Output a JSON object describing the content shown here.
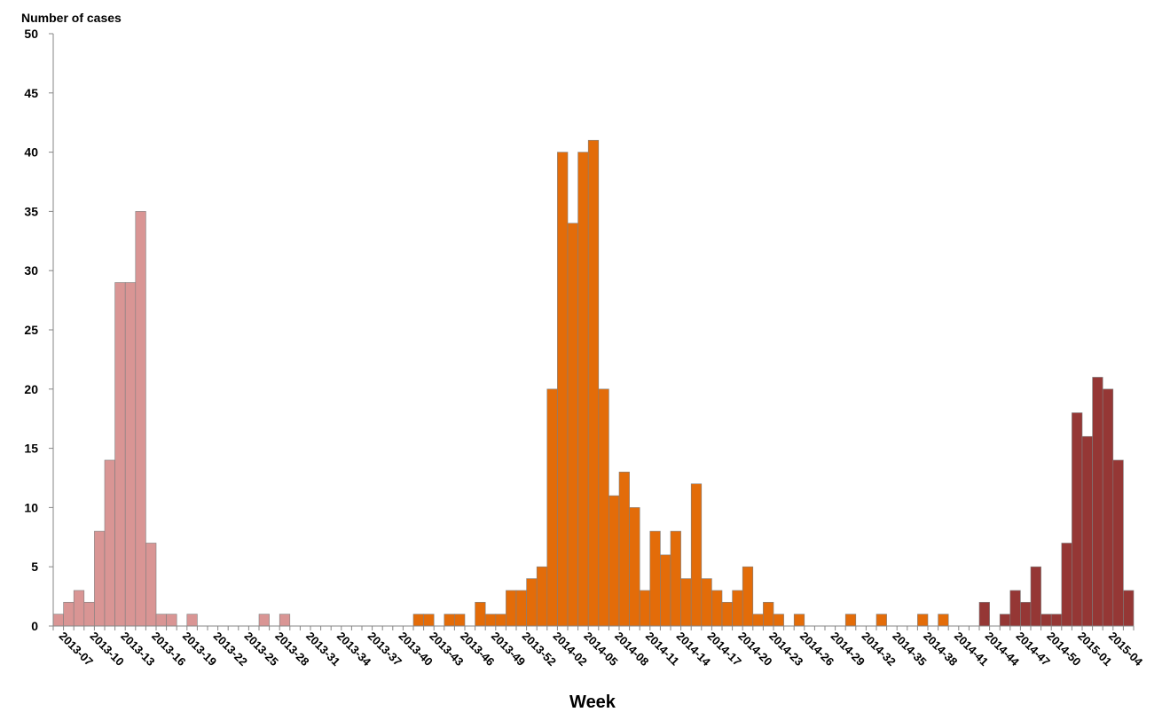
{
  "chart_data": {
    "type": "bar",
    "title": "",
    "ylabel": "Number of cases",
    "xlabel": "Week",
    "ylim": [
      0,
      50
    ],
    "yticks": [
      0,
      5,
      10,
      15,
      20,
      25,
      30,
      35,
      40,
      45,
      50
    ],
    "grid": false,
    "start_week": "2013-07",
    "tick_labels": [
      "2013-07",
      "2013-10",
      "2013-13",
      "2013-16",
      "2013-19",
      "2013-22",
      "2013-25",
      "2013-28",
      "2013-31",
      "2013-34",
      "2013-37",
      "2013-40",
      "2013-43",
      "2013-46",
      "2013-49",
      "2013-52",
      "2014-02",
      "2014-05",
      "2014-08",
      "2014-11",
      "2014-14",
      "2014-17",
      "2014-20",
      "2014-23",
      "2014-26",
      "2014-29",
      "2014-32",
      "2014-35",
      "2014-38",
      "2014-41",
      "2014-44",
      "2014-47",
      "2014-50",
      "2015-01",
      "2015-04"
    ],
    "colors": {
      "wave1": "#d99594",
      "wave2": "#e36c09",
      "wave3": "#953735"
    },
    "series": [
      {
        "name": "",
        "color": "#d99594",
        "values": [
          1,
          2,
          3,
          2,
          8,
          14,
          29,
          29,
          35,
          7,
          1,
          1,
          0,
          1,
          0,
          0,
          0,
          0,
          0,
          0,
          1,
          0,
          1
        ]
      },
      {
        "name": "",
        "color": "#e36c09",
        "values": [
          0,
          0,
          0,
          0,
          0,
          0,
          0,
          0,
          0,
          0,
          0,
          0,
          1,
          1,
          0,
          1,
          1,
          0,
          2,
          1,
          1,
          3,
          3,
          4,
          5,
          20,
          40,
          34,
          40,
          41,
          20,
          11,
          13,
          10,
          3,
          8,
          6,
          8,
          4,
          12,
          4,
          3,
          2,
          3,
          5,
          1,
          2,
          1,
          0,
          1,
          0,
          0,
          0,
          0,
          1,
          0,
          0,
          1,
          0,
          0,
          0,
          1,
          0,
          1,
          0,
          0,
          0
        ]
      },
      {
        "name": "",
        "color": "#953735",
        "values": [
          2,
          0,
          1,
          3,
          2,
          5,
          1,
          1,
          7,
          18,
          16,
          21,
          20,
          14,
          3
        ]
      }
    ]
  }
}
